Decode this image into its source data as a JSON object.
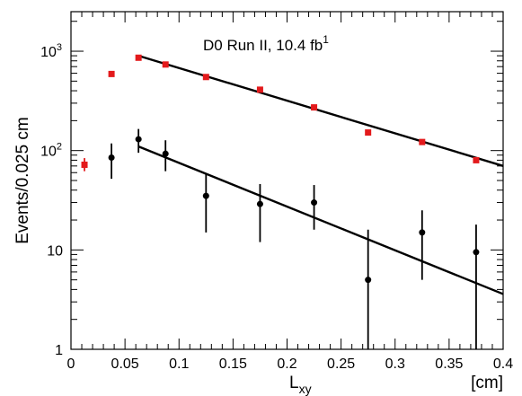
{
  "chart_data": {
    "type": "scatter",
    "annotation": {
      "main": "D0 Run II, 10.4 fb",
      "sup": "1"
    },
    "xlabel": {
      "main": "L",
      "sub": "xy"
    },
    "xunit": "[cm]",
    "ylabel": "Events/0.025 cm",
    "xlim": [
      0,
      0.4
    ],
    "ylim": [
      1,
      2500
    ],
    "yscale": "log",
    "grid": false,
    "x_ticks": [
      0,
      0.05,
      0.1,
      0.15,
      0.2,
      0.25,
      0.3,
      0.35,
      0.4
    ],
    "x_tick_labels": [
      "0",
      "0.05",
      "0.1",
      "0.15",
      "0.2",
      "0.25",
      "0.3",
      "0.35",
      "0.4"
    ],
    "y_ticks": [
      1,
      10,
      100,
      1000
    ],
    "y_tick_labels": [
      {
        "base": "1",
        "exp": ""
      },
      {
        "base": "10",
        "exp": ""
      },
      {
        "base": "10",
        "exp": "2"
      },
      {
        "base": "10",
        "exp": "3"
      }
    ],
    "series": [
      {
        "color": "#e31a1c",
        "marker": "square",
        "points": [
          {
            "x": 0.0125,
            "y": 72,
            "ylo": 62,
            "yhi": 84
          },
          {
            "x": 0.0375,
            "y": 590
          },
          {
            "x": 0.0625,
            "y": 860
          },
          {
            "x": 0.0875,
            "y": 735
          },
          {
            "x": 0.125,
            "y": 550
          },
          {
            "x": 0.175,
            "y": 410
          },
          {
            "x": 0.225,
            "y": 272
          },
          {
            "x": 0.275,
            "y": 152
          },
          {
            "x": 0.325,
            "y": 122
          },
          {
            "x": 0.375,
            "y": 80
          }
        ],
        "fit": {
          "x": [
            0.0625,
            0.4
          ],
          "y": [
            900,
            70
          ]
        }
      },
      {
        "color": "#000000",
        "marker": "circle",
        "points": [
          {
            "x": 0.0375,
            "y": 85,
            "ylo": 52,
            "yhi": 118
          },
          {
            "x": 0.0625,
            "y": 130,
            "ylo": 95,
            "yhi": 165
          },
          {
            "x": 0.0875,
            "y": 93,
            "ylo": 62,
            "yhi": 127
          },
          {
            "x": 0.125,
            "y": 35,
            "ylo": 15,
            "yhi": 58
          },
          {
            "x": 0.175,
            "y": 29,
            "ylo": 12,
            "yhi": 46
          },
          {
            "x": 0.225,
            "y": 30,
            "ylo": 16,
            "yhi": 45
          },
          {
            "x": 0.275,
            "y": 5,
            "ylo": 1,
            "yhi": 16
          },
          {
            "x": 0.325,
            "y": 15,
            "ylo": 5,
            "yhi": 25
          },
          {
            "x": 0.375,
            "y": 9.5,
            "ylo": 1,
            "yhi": 18
          }
        ],
        "fit": {
          "x": [
            0.0625,
            0.4
          ],
          "y": [
            110,
            3.6
          ]
        }
      }
    ]
  }
}
